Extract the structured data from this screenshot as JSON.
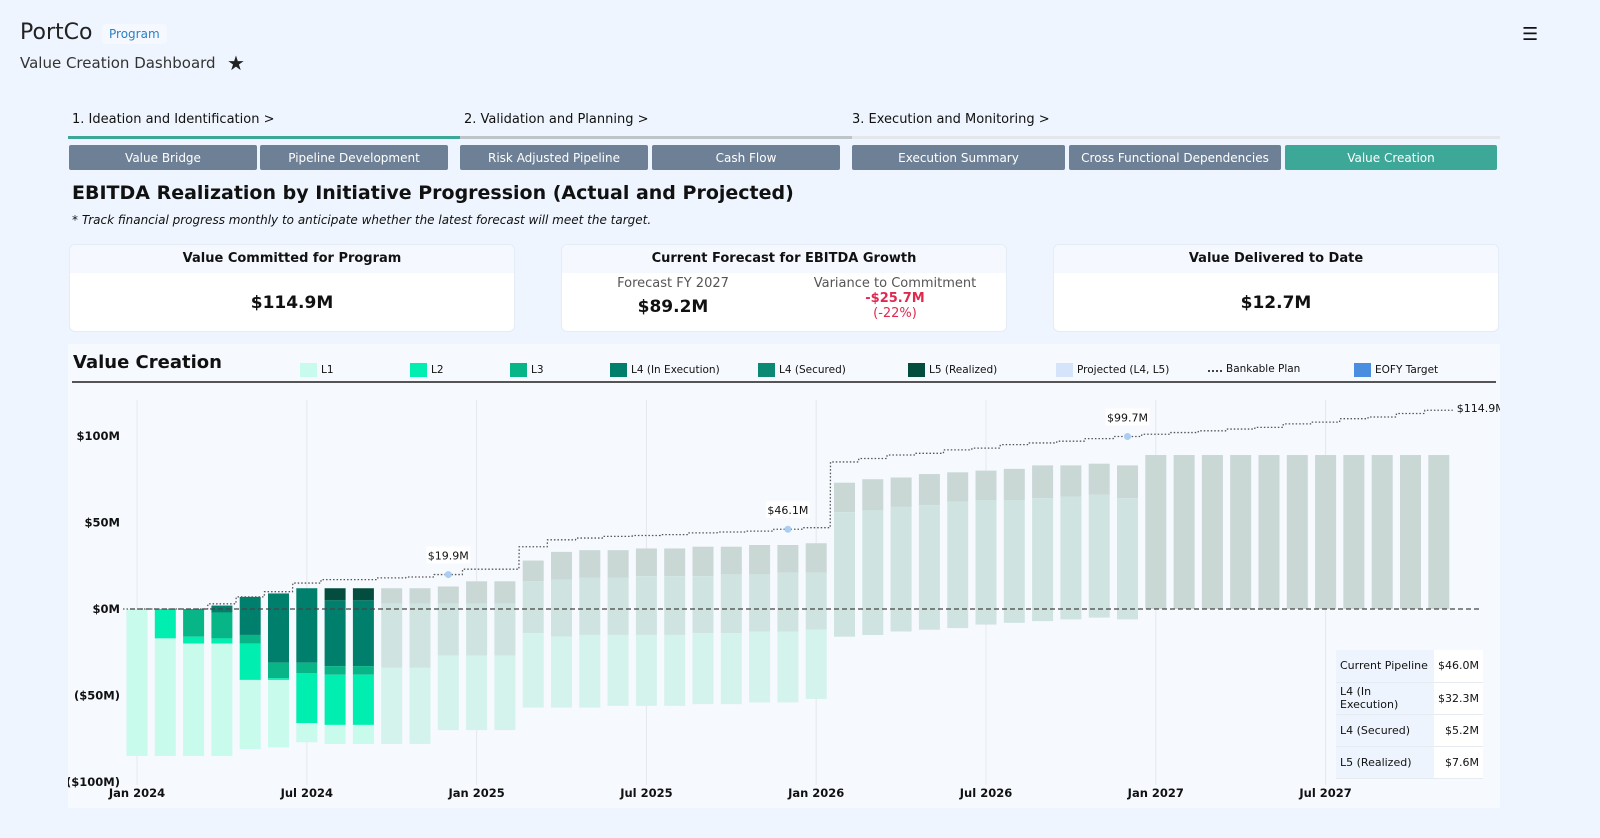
{
  "header": {
    "brand": "PortCo",
    "badge": "Program",
    "subtitle": "Value Creation Dashboard",
    "star_icon": "star-icon",
    "menu_icon": "hamburger-menu-icon"
  },
  "phases": [
    {
      "label": "1. Ideation and Identification >",
      "color": "#3da798"
    },
    {
      "label": "2. Validation and Planning >",
      "color": "#bfc4c9"
    },
    {
      "label": "3. Execution and Monitoring >",
      "color": "#e3e6ea"
    }
  ],
  "tabs": [
    {
      "label": "Value Bridge"
    },
    {
      "label": "Pipeline Development"
    },
    {
      "label": "Risk Adjusted Pipeline"
    },
    {
      "label": "Cash Flow"
    },
    {
      "label": "Execution Summary"
    },
    {
      "label": "Cross Functional Dependencies"
    },
    {
      "label": "Value Creation",
      "active": true
    }
  ],
  "page": {
    "title": "EBITDA Realization by Initiative Progression (Actual and Projected)",
    "note": "* Track financial progress monthly to anticipate whether the latest forecast will meet the target."
  },
  "cards": {
    "committed": {
      "title": "Value Committed for Program",
      "value": "$114.9M"
    },
    "forecast": {
      "title": "Current Forecast for EBITDA Growth",
      "forecast_label": "Forecast FY 2027",
      "forecast_value": "$89.2M",
      "variance_label": "Variance to Commitment",
      "variance_value": "-$25.7M",
      "variance_pct": "(-22%)"
    },
    "delivered": {
      "title": "Value Delivered to Date",
      "value": "$12.7M"
    }
  },
  "chart_data": {
    "type": "bar",
    "title": "Value Creation",
    "legend": [
      {
        "key": "L1",
        "label": "L1",
        "color": "#c8fbec"
      },
      {
        "key": "L2",
        "label": "L2",
        "color": "#00eeb0"
      },
      {
        "key": "L3",
        "label": "L3",
        "color": "#07b586"
      },
      {
        "key": "L4E",
        "label": "L4 (In Execution)",
        "color": "#00806c"
      },
      {
        "key": "L4S",
        "label": "L4 (Secured)",
        "color": "#0a8a74"
      },
      {
        "key": "L5",
        "label": "L5 (Realized)",
        "color": "#034d3e"
      },
      {
        "key": "PROJ",
        "label": "Projected (L4, L5)",
        "color": "#d6e4fb"
      },
      {
        "key": "PLAN",
        "label": "Bankable Plan",
        "color": "#444444"
      },
      {
        "key": "EOFY",
        "label": "EOFY Target",
        "color": "#4a8fdf"
      }
    ],
    "projected_colors": {
      "proj": "#c9d7d5",
      "mid": "#cfe4e1",
      "low": "#d4f3ec"
    },
    "y_ticks": [
      {
        "v": 100,
        "label": "$100M"
      },
      {
        "v": 50,
        "label": "$50M"
      },
      {
        "v": 0,
        "label": "$0M"
      },
      {
        "v": -50,
        "label": "($50M)"
      },
      {
        "v": -100,
        "label": "($100M)"
      }
    ],
    "ylim": [
      -100,
      115
    ],
    "x_ticks": [
      {
        "i": 0,
        "label": "Jan 2024"
      },
      {
        "i": 6,
        "label": "Jul 2024"
      },
      {
        "i": 12,
        "label": "Jan 2025"
      },
      {
        "i": 18,
        "label": "Jul 2025"
      },
      {
        "i": 24,
        "label": "Jan 2026"
      },
      {
        "i": 30,
        "label": "Jul 2026"
      },
      {
        "i": 36,
        "label": "Jan 2027"
      },
      {
        "i": 42,
        "label": "Jul 2027"
      }
    ],
    "bars": [
      [
        [
          "L1",
          0,
          -85
        ]
      ],
      [
        [
          "L2",
          0,
          -17
        ],
        [
          "L1",
          -17,
          -85
        ]
      ],
      [
        [
          "L3",
          0,
          -16
        ],
        [
          "L2",
          -16,
          -20
        ],
        [
          "L1",
          -20,
          -85
        ]
      ],
      [
        [
          "L4E",
          2,
          -2
        ],
        [
          "L3",
          -2,
          -17
        ],
        [
          "L2",
          -17,
          -20
        ],
        [
          "L1",
          -20,
          -85
        ]
      ],
      [
        [
          "L4E",
          7,
          -15
        ],
        [
          "L3",
          -15,
          -20
        ],
        [
          "L2",
          -20,
          -41
        ],
        [
          "L1",
          -41,
          -81
        ]
      ],
      [
        [
          "L4E",
          9,
          -31
        ],
        [
          "L3",
          -31,
          -40
        ],
        [
          "L2",
          -40,
          -41
        ],
        [
          "L1",
          -41,
          -80
        ]
      ],
      [
        [
          "L4E",
          12,
          -31
        ],
        [
          "L3",
          -31,
          -37
        ],
        [
          "L2",
          -37,
          -66
        ],
        [
          "L1",
          -66,
          -77
        ]
      ],
      [
        [
          "L5",
          12,
          5
        ],
        [
          "L4E",
          5,
          -33
        ],
        [
          "L3",
          -33,
          -38
        ],
        [
          "L2",
          -38,
          -67
        ],
        [
          "L1",
          -67,
          -78
        ]
      ],
      [
        [
          "L5",
          12,
          5
        ],
        [
          "L4E",
          5,
          -33
        ],
        [
          "L3",
          -33,
          -38
        ],
        [
          "L2",
          -38,
          -67
        ],
        [
          "L1",
          -67,
          -78
        ]
      ],
      [
        [
          "proj",
          12,
          3
        ],
        [
          "mid",
          3,
          -34
        ],
        [
          "low",
          -34,
          -78
        ]
      ],
      [
        [
          "proj",
          12,
          3
        ],
        [
          "mid",
          3,
          -34
        ],
        [
          "low",
          -34,
          -78
        ]
      ],
      [
        [
          "proj",
          13,
          3
        ],
        [
          "mid",
          3,
          -27
        ],
        [
          "low",
          -27,
          -70
        ]
      ],
      [
        [
          "proj",
          16,
          3
        ],
        [
          "mid",
          3,
          -27
        ],
        [
          "low",
          -27,
          -70
        ]
      ],
      [
        [
          "proj",
          16,
          3
        ],
        [
          "mid",
          3,
          -27
        ],
        [
          "low",
          -27,
          -70
        ]
      ],
      [
        [
          "proj",
          28,
          16
        ],
        [
          "mid",
          16,
          -14
        ],
        [
          "low",
          -14,
          -57
        ]
      ],
      [
        [
          "proj",
          33,
          17
        ],
        [
          "mid",
          17,
          -16
        ],
        [
          "low",
          -16,
          -57
        ]
      ],
      [
        [
          "proj",
          34,
          18
        ],
        [
          "mid",
          18,
          -15
        ],
        [
          "low",
          -15,
          -57
        ]
      ],
      [
        [
          "proj",
          34,
          18
        ],
        [
          "mid",
          18,
          -15
        ],
        [
          "low",
          -15,
          -56
        ]
      ],
      [
        [
          "proj",
          35,
          19
        ],
        [
          "mid",
          19,
          -15
        ],
        [
          "low",
          -15,
          -56
        ]
      ],
      [
        [
          "proj",
          35,
          19
        ],
        [
          "mid",
          19,
          -15
        ],
        [
          "low",
          -15,
          -56
        ]
      ],
      [
        [
          "proj",
          36,
          19
        ],
        [
          "mid",
          19,
          -14
        ],
        [
          "low",
          -14,
          -55
        ]
      ],
      [
        [
          "proj",
          36,
          20
        ],
        [
          "mid",
          20,
          -14
        ],
        [
          "low",
          -14,
          -55
        ]
      ],
      [
        [
          "proj",
          37,
          20
        ],
        [
          "mid",
          20,
          -13
        ],
        [
          "low",
          -13,
          -54
        ]
      ],
      [
        [
          "proj",
          37,
          21
        ],
        [
          "mid",
          21,
          -13
        ],
        [
          "low",
          -13,
          -54
        ]
      ],
      [
        [
          "proj",
          38,
          21
        ],
        [
          "mid",
          21,
          -12
        ],
        [
          "low",
          -12,
          -52
        ]
      ],
      [
        [
          "proj",
          73,
          56
        ],
        [
          "mid",
          56,
          -16
        ]
      ],
      [
        [
          "proj",
          75,
          57
        ],
        [
          "mid",
          57,
          -15
        ]
      ],
      [
        [
          "proj",
          76,
          59
        ],
        [
          "mid",
          59,
          -13
        ]
      ],
      [
        [
          "proj",
          78,
          60
        ],
        [
          "mid",
          60,
          -12
        ]
      ],
      [
        [
          "proj",
          79,
          62
        ],
        [
          "mid",
          62,
          -11
        ]
      ],
      [
        [
          "proj",
          80,
          63
        ],
        [
          "mid",
          63,
          -9
        ]
      ],
      [
        [
          "proj",
          81,
          63
        ],
        [
          "mid",
          63,
          -8
        ]
      ],
      [
        [
          "proj",
          83,
          64
        ],
        [
          "mid",
          64,
          -7
        ]
      ],
      [
        [
          "proj",
          83,
          65
        ],
        [
          "mid",
          65,
          -6
        ]
      ],
      [
        [
          "proj",
          84,
          66
        ],
        [
          "mid",
          66,
          -5
        ]
      ],
      [
        [
          "proj",
          83,
          64
        ],
        [
          "mid",
          64,
          -6
        ]
      ],
      [
        [
          "proj",
          89,
          0
        ]
      ],
      [
        [
          "proj",
          89,
          0
        ]
      ],
      [
        [
          "proj",
          89,
          0
        ]
      ],
      [
        [
          "proj",
          89,
          0
        ]
      ],
      [
        [
          "proj",
          89,
          0
        ]
      ],
      [
        [
          "proj",
          89,
          0
        ]
      ],
      [
        [
          "proj",
          89,
          0
        ]
      ],
      [
        [
          "proj",
          89,
          0
        ]
      ],
      [
        [
          "proj",
          89,
          0
        ]
      ],
      [
        [
          "proj",
          89,
          0
        ]
      ],
      [
        [
          "proj",
          89,
          0
        ]
      ]
    ],
    "bankable_plan": [
      0,
      0,
      0,
      3,
      7,
      10,
      15,
      17,
      17,
      18,
      18.5,
      19.9,
      23,
      23,
      36,
      40,
      41,
      42,
      42.5,
      43,
      44,
      44.5,
      45,
      46.1,
      47,
      85,
      87,
      89,
      90,
      92,
      93,
      95,
      96,
      97,
      98.5,
      99.7,
      101,
      102,
      103,
      104,
      105,
      107,
      108,
      110,
      111,
      113,
      114.9
    ],
    "eofy_targets": [
      {
        "i": 11,
        "label": "$19.9M"
      },
      {
        "i": 23,
        "label": "$46.1M"
      },
      {
        "i": 35,
        "label": "$99.7M"
      }
    ],
    "end_label": "$114.9M",
    "summary_table": [
      [
        "Current Pipeline",
        "$46.0M"
      ],
      [
        "L4 (In Execution)",
        "$32.3M"
      ],
      [
        "L4 (Secured)",
        "$5.2M"
      ],
      [
        "L5 (Realized)",
        "$7.6M"
      ]
    ]
  }
}
